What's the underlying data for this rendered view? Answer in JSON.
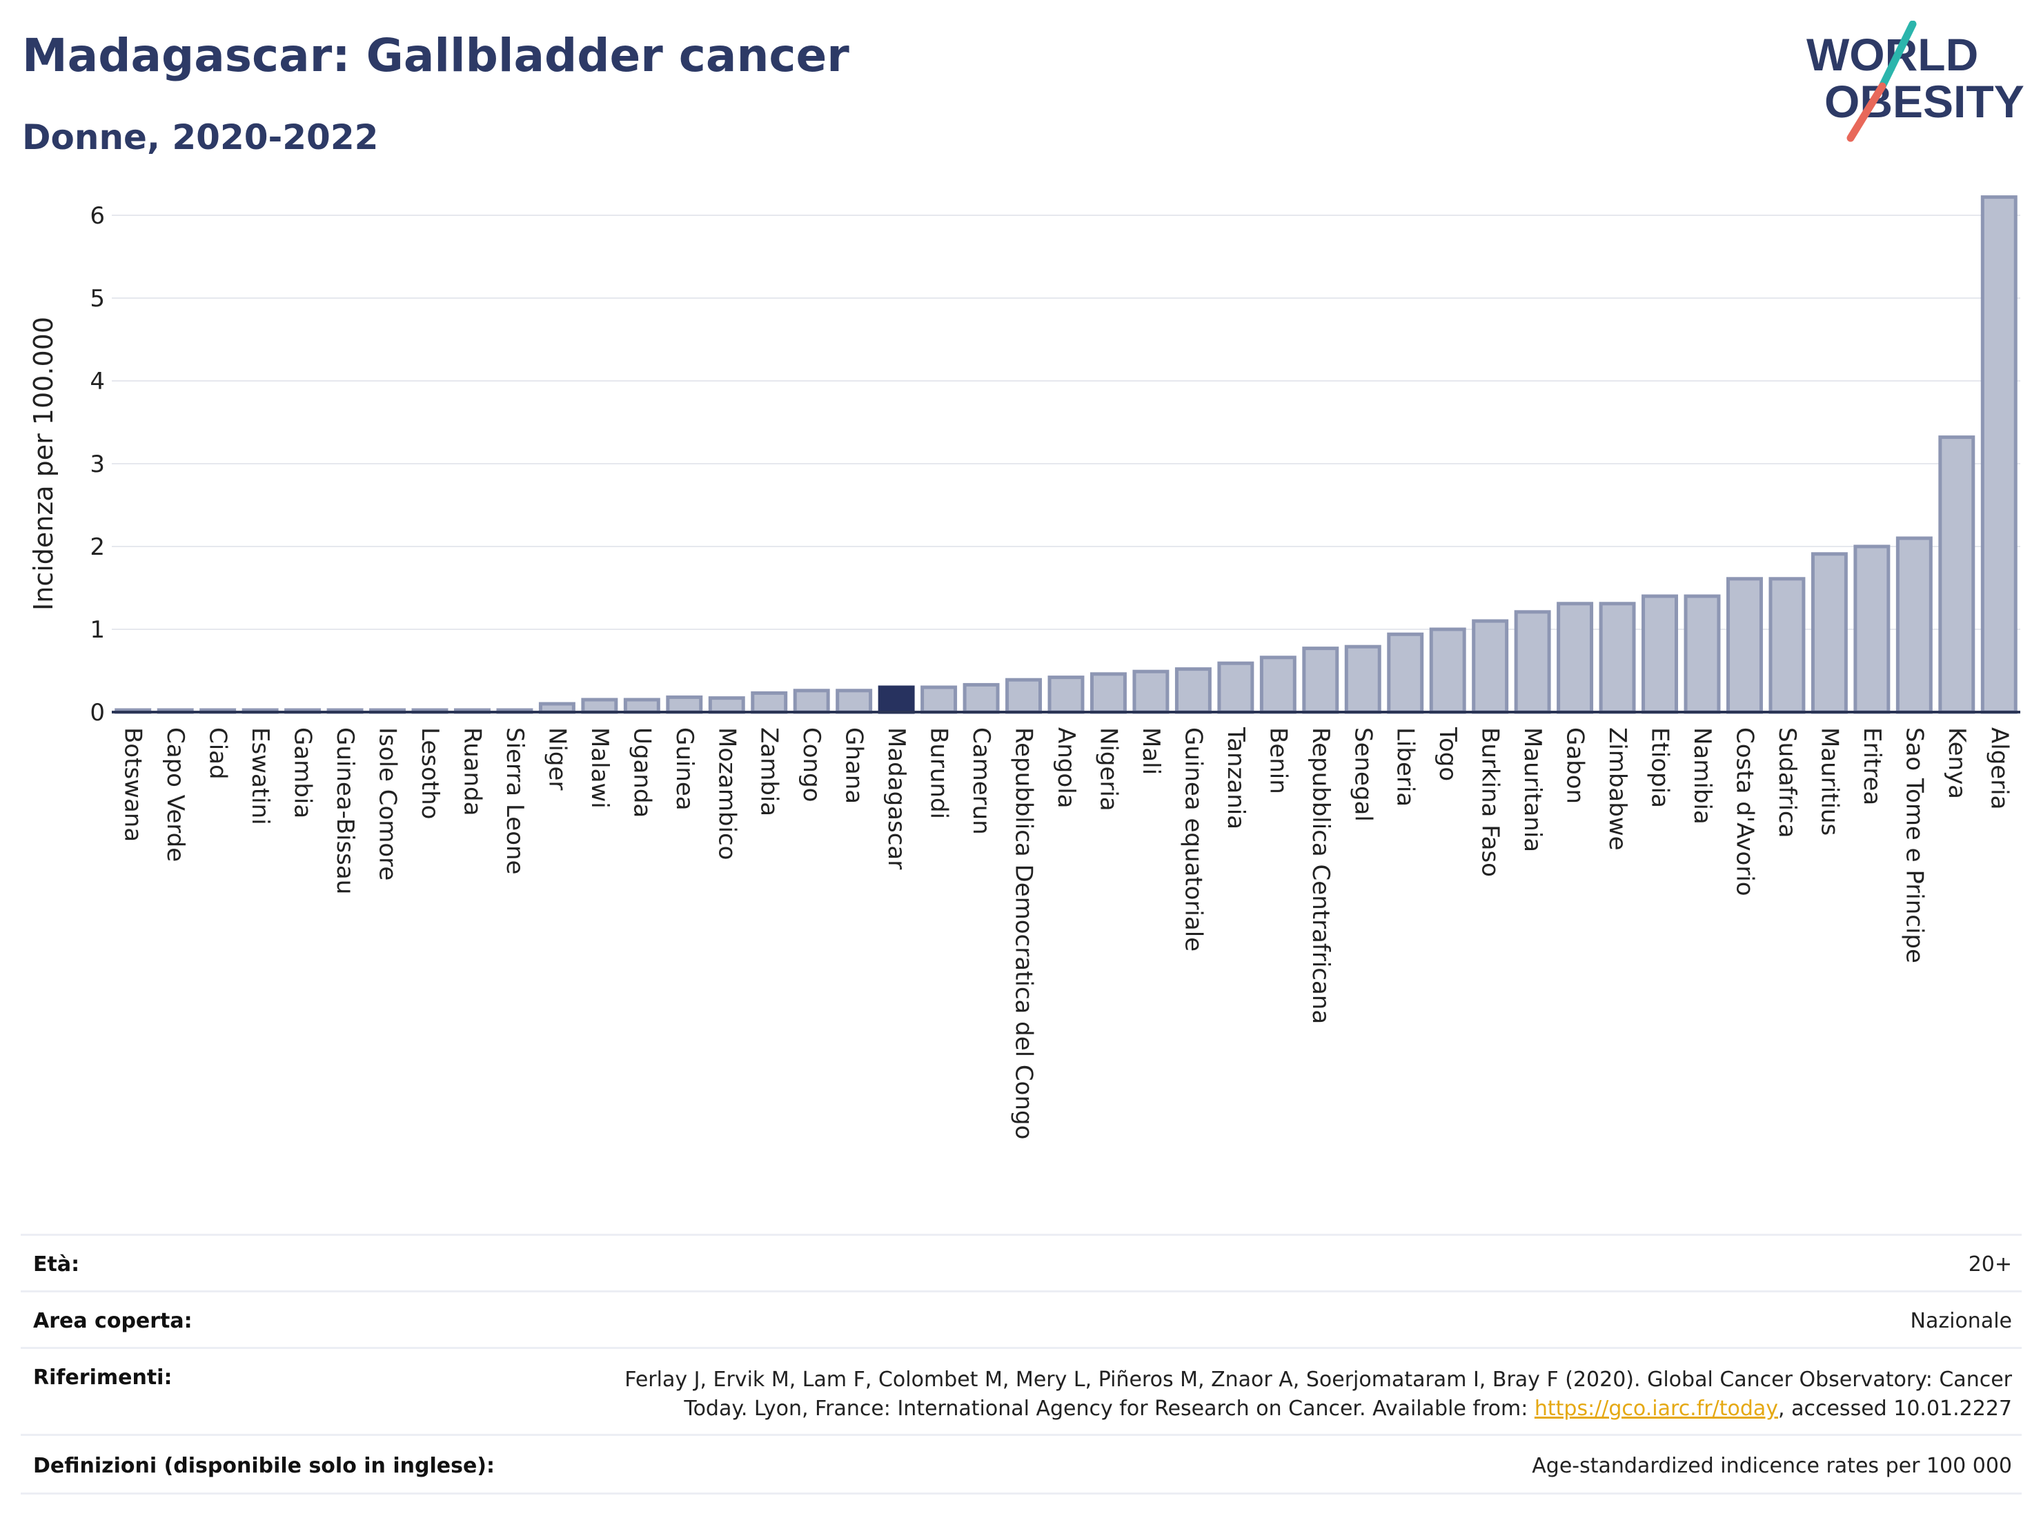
{
  "title": "Madagascar: Gallbladder cancer",
  "subtitle": "Donne, 2020-2022",
  "logo": {
    "line1": "WORLD",
    "line2": "OBESITY"
  },
  "colors": {
    "bar": "#b9bfd0",
    "bar_stroke": "#8d96b3",
    "highlight": "#27325f",
    "title": "#2d3a66",
    "logo_slash_teal": "#2bb5ac",
    "logo_slash_red": "#e8685a",
    "link": "#e5a812"
  },
  "chart_data": {
    "type": "bar",
    "ylabel": "Incidenza per 100.000",
    "ylim": [
      0,
      6.4
    ],
    "yticks": [
      0,
      1,
      2,
      3,
      4,
      5,
      6
    ],
    "grid": true,
    "highlight": "Madagascar",
    "categories": [
      "Botswana",
      "Capo Verde",
      "Ciad",
      "Eswatini",
      "Gambia",
      "Guinea-Bissau",
      "Isole Comore",
      "Lesotho",
      "Ruanda",
      "Sierra Leone",
      "Niger",
      "Malawi",
      "Uganda",
      "Guinea",
      "Mozambico",
      "Zambia",
      "Congo",
      "Ghana",
      "Madagascar",
      "Burundi",
      "Camerun",
      "Repubblica Democratica del Congo",
      "Angola",
      "Nigeria",
      "Mali",
      "Guinea equatoriale",
      "Tanzania",
      "Benin",
      "Repubblica Centrafricana",
      "Senegal",
      "Liberia",
      "Togo",
      "Burkina Faso",
      "Mauritania",
      "Gabon",
      "Zimbabwe",
      "Etiopia",
      "Namibia",
      "Costa d'Avorio",
      "Sudafrica",
      "Mauritius",
      "Eritrea",
      "Sao Tome e Principe",
      "Kenya",
      "Algeria"
    ],
    "values": [
      0.02,
      0.02,
      0.02,
      0.02,
      0.02,
      0.02,
      0.02,
      0.02,
      0.02,
      0.02,
      0.1,
      0.15,
      0.15,
      0.18,
      0.17,
      0.23,
      0.26,
      0.26,
      0.3,
      0.3,
      0.33,
      0.39,
      0.42,
      0.46,
      0.49,
      0.52,
      0.59,
      0.66,
      0.77,
      0.79,
      0.94,
      1.0,
      1.1,
      1.21,
      1.31,
      1.31,
      1.4,
      1.4,
      1.61,
      1.61,
      1.91,
      2.0,
      2.1,
      3.32,
      6.22
    ]
  },
  "meta": {
    "eta_label": "Età:",
    "eta_value": "20+",
    "area_label": "Area coperta:",
    "area_value": "Nazionale",
    "rif_label": "Riferimenti:",
    "rif_line1": "Ferlay J, Ervik M, Lam F, Colombet M, Mery L, Piñeros M, Znaor A, Soerjomataram I, Bray F (2020). Global Cancer Observatory: Cancer",
    "rif_line2_pre": "Today. Lyon, France: International Agency for Research on Cancer. Available from: ",
    "rif_link": "https://gco.iarc.fr/today",
    "rif_line2_post": ", accessed 10.01.2227",
    "def_label": "Definizioni (disponibile solo in inglese):",
    "def_value": "Age-standardized indicence rates per 100 000"
  }
}
